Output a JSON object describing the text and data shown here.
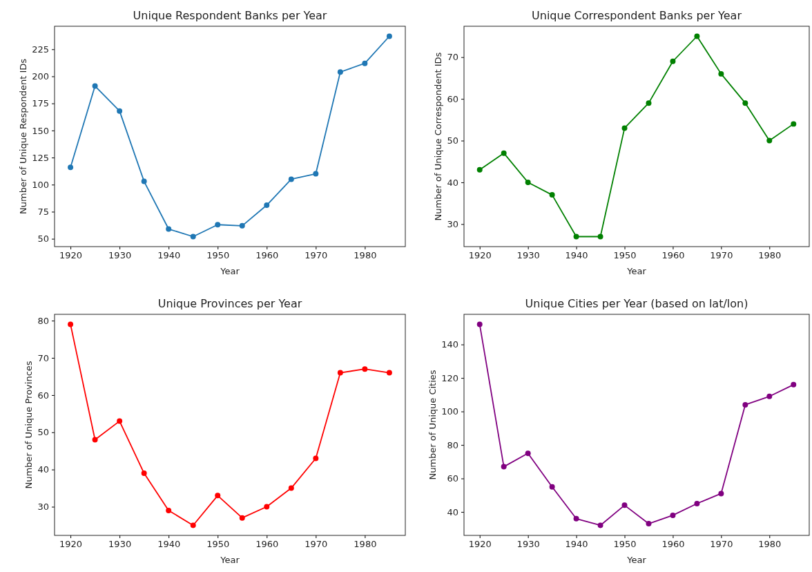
{
  "chart_data": [
    {
      "type": "line",
      "title": "Unique Respondent Banks per Year",
      "xlabel": "Year",
      "ylabel": "Number of Unique Respondent IDs",
      "x": [
        1920,
        1925,
        1930,
        1935,
        1940,
        1945,
        1950,
        1955,
        1960,
        1965,
        1970,
        1975,
        1980,
        1985
      ],
      "marker": "circle",
      "series": [
        {
          "color": "#1f77b4",
          "values": [
            116,
            191,
            168,
            103,
            59,
            52,
            63,
            62,
            81,
            105,
            110,
            204,
            212,
            237
          ]
        }
      ],
      "xlim": [
        1916.75,
        1988.25
      ],
      "xticks": [
        1920,
        1930,
        1940,
        1950,
        1960,
        1970,
        1980
      ],
      "ylim": [
        42.75,
        246.25
      ],
      "yticks": [
        50,
        75,
        100,
        125,
        150,
        175,
        200,
        225
      ]
    },
    {
      "type": "line",
      "title": "Unique Correspondent Banks per Year",
      "xlabel": "Year",
      "ylabel": "Number of Unique Correspondent IDs",
      "x": [
        1920,
        1925,
        1930,
        1935,
        1940,
        1945,
        1950,
        1955,
        1960,
        1965,
        1970,
        1975,
        1980,
        1985
      ],
      "marker": "circle",
      "series": [
        {
          "color": "#008000",
          "values": [
            43,
            47,
            40,
            37,
            27,
            27,
            53,
            59,
            69,
            75,
            66,
            59,
            50,
            54
          ]
        }
      ],
      "xlim": [
        1916.75,
        1988.25
      ],
      "xticks": [
        1920,
        1930,
        1940,
        1950,
        1960,
        1970,
        1980
      ],
      "ylim": [
        24.6,
        77.4
      ],
      "yticks": [
        30,
        40,
        50,
        60,
        70
      ]
    },
    {
      "type": "line",
      "title": "Unique Provinces per Year",
      "xlabel": "Year",
      "ylabel": "Number of Unique Provinces",
      "x": [
        1920,
        1925,
        1930,
        1935,
        1940,
        1945,
        1950,
        1955,
        1960,
        1965,
        1970,
        1975,
        1980,
        1985
      ],
      "marker": "circle",
      "series": [
        {
          "color": "#ff0000",
          "values": [
            79,
            48,
            53,
            39,
            29,
            25,
            33,
            27,
            30,
            35,
            43,
            66,
            67,
            66
          ]
        }
      ],
      "xlim": [
        1916.75,
        1988.25
      ],
      "xticks": [
        1920,
        1930,
        1940,
        1950,
        1960,
        1970,
        1980
      ],
      "ylim": [
        22.3,
        81.7
      ],
      "yticks": [
        30,
        40,
        50,
        60,
        70,
        80
      ]
    },
    {
      "type": "line",
      "title": "Unique Cities per Year (based on lat/lon)",
      "xlabel": "Year",
      "ylabel": "Number of Unique Cities",
      "x": [
        1920,
        1925,
        1930,
        1935,
        1940,
        1945,
        1950,
        1955,
        1960,
        1965,
        1970,
        1975,
        1980,
        1985
      ],
      "marker": "circle",
      "series": [
        {
          "color": "#800080",
          "values": [
            152,
            67,
            75,
            55,
            36,
            32,
            44,
            33,
            38,
            45,
            51,
            104,
            109,
            116
          ]
        }
      ],
      "xlim": [
        1916.75,
        1988.25
      ],
      "xticks": [
        1920,
        1930,
        1940,
        1950,
        1960,
        1970,
        1980
      ],
      "ylim": [
        26,
        158
      ],
      "yticks": [
        40,
        60,
        80,
        100,
        120,
        140
      ]
    }
  ]
}
